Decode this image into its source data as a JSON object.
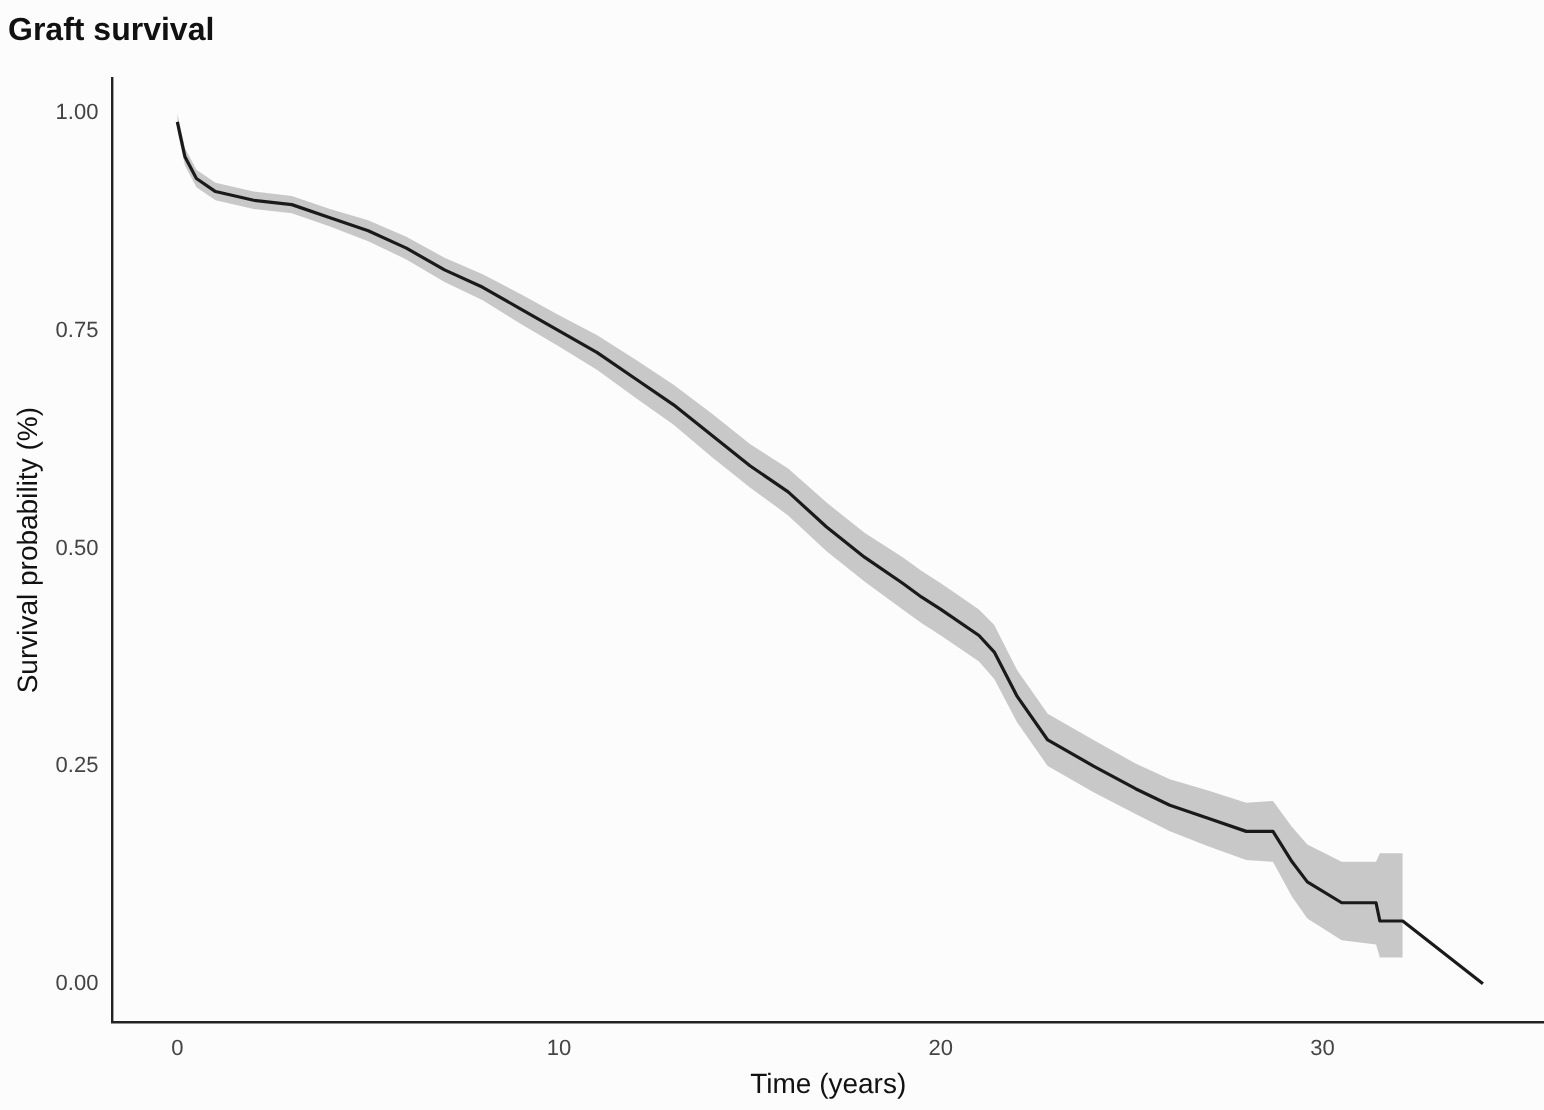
{
  "chart_data": {
    "type": "line",
    "title": "Graft survival",
    "xlabel": "Time (years)",
    "ylabel": "Survival probability (%)",
    "x": [
      0,
      0.2,
      0.5,
      1,
      2,
      3,
      4,
      5,
      6,
      7,
      8,
      9,
      10,
      11,
      12,
      13,
      14,
      15,
      16,
      17,
      18,
      19,
      19.5,
      20,
      21,
      21.4,
      22,
      22.8,
      24,
      25.1,
      26,
      27,
      28,
      28.7,
      29.2,
      29.6,
      30.5,
      31.4,
      31.5,
      32.1,
      34.2
    ],
    "series": [
      {
        "color": "#1a1a1a",
        "values": [
          0.99,
          0.95,
          0.925,
          0.91,
          0.9,
          0.895,
          0.88,
          0.865,
          0.845,
          0.82,
          0.8,
          0.775,
          0.75,
          0.725,
          0.695,
          0.665,
          0.63,
          0.595,
          0.565,
          0.525,
          0.49,
          0.46,
          0.444,
          0.43,
          0.4,
          0.381,
          0.33,
          0.28,
          0.25,
          0.224,
          0.205,
          0.19,
          0.175,
          0.175,
          0.14,
          0.117,
          0.093,
          0.093,
          0.072,
          0.072,
          0
        ],
        "lower": [
          0.98,
          0.94,
          0.915,
          0.9,
          0.89,
          0.885,
          0.87,
          0.853,
          0.832,
          0.806,
          0.785,
          0.758,
          0.732,
          0.705,
          0.673,
          0.642,
          0.605,
          0.57,
          0.538,
          0.497,
          0.462,
          0.43,
          0.414,
          0.4,
          0.37,
          0.35,
          0.3,
          0.25,
          0.22,
          0.195,
          0.175,
          0.158,
          0.142,
          0.14,
          0.1,
          0.075,
          0.05,
          0.045,
          0.03,
          0.03,
          null
        ],
        "upper": [
          1,
          0.96,
          0.935,
          0.92,
          0.91,
          0.905,
          0.89,
          0.877,
          0.858,
          0.834,
          0.815,
          0.792,
          0.768,
          0.745,
          0.717,
          0.688,
          0.655,
          0.62,
          0.592,
          0.553,
          0.518,
          0.49,
          0.474,
          0.46,
          0.43,
          0.412,
          0.36,
          0.31,
          0.28,
          0.253,
          0.235,
          0.222,
          0.208,
          0.21,
          0.18,
          0.16,
          0.14,
          0.14,
          0.15,
          0.15,
          null
        ]
      }
    ],
    "xlim": [
      -1.7,
      35.8
    ],
    "ylim": [
      -0.044,
      1.04
    ],
    "xticks": [
      0,
      10,
      20,
      30
    ],
    "yticks": [
      {
        "value": 0,
        "label": "0.00"
      },
      {
        "value": 0.25,
        "label": "0.25"
      },
      {
        "value": 0.5,
        "label": "0.50"
      },
      {
        "value": 0.75,
        "label": "0.75"
      },
      {
        "value": 1,
        "label": "1.00"
      }
    ],
    "grid": false,
    "legend": false
  }
}
